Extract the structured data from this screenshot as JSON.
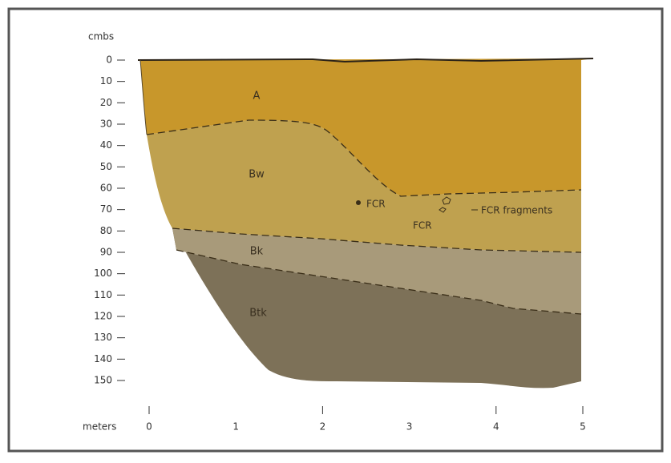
{
  "depth_axis": {
    "label": "cmbs",
    "ticks": [
      "0",
      "10",
      "20",
      "30",
      "40",
      "50",
      "60",
      "70",
      "80",
      "90",
      "100",
      "110",
      "120",
      "130",
      "140",
      "150"
    ]
  },
  "distance_axis": {
    "label": "meters",
    "ticks": [
      "0",
      "1",
      "2",
      "3",
      "4",
      "5"
    ]
  },
  "horizons": [
    "A",
    "Bw",
    "Bk",
    "Btk"
  ],
  "annotations": [
    "FCR",
    "FCR",
    "FCR fragments"
  ]
}
